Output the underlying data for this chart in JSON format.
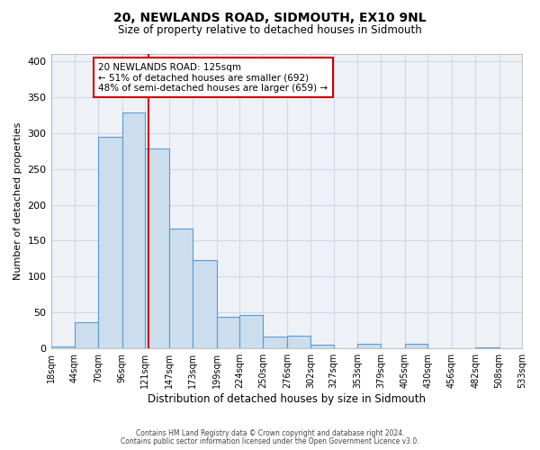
{
  "title1": "20, NEWLANDS ROAD, SIDMOUTH, EX10 9NL",
  "title2": "Size of property relative to detached houses in Sidmouth",
  "xlabel": "Distribution of detached houses by size in Sidmouth",
  "ylabel": "Number of detached properties",
  "bin_edges": [
    18,
    44,
    70,
    96,
    121,
    147,
    173,
    199,
    224,
    250,
    276,
    302,
    327,
    353,
    379,
    405,
    430,
    456,
    482,
    508,
    533
  ],
  "bin_labels": [
    "18sqm",
    "44sqm",
    "70sqm",
    "96sqm",
    "121sqm",
    "147sqm",
    "173sqm",
    "199sqm",
    "224sqm",
    "250sqm",
    "276sqm",
    "302sqm",
    "327sqm",
    "353sqm",
    "379sqm",
    "405sqm",
    "430sqm",
    "456sqm",
    "482sqm",
    "508sqm",
    "533sqm"
  ],
  "counts": [
    3,
    36,
    295,
    329,
    279,
    167,
    123,
    44,
    46,
    17,
    18,
    5,
    0,
    6,
    0,
    6,
    0,
    0,
    2,
    0
  ],
  "property_value": 125,
  "annotation_title": "20 NEWLANDS ROAD: 125sqm",
  "annotation_line1": "← 51% of detached houses are smaller (692)",
  "annotation_line2": "48% of semi-detached houses are larger (659) →",
  "bar_color": "#ccdded",
  "bar_edge_color": "#5b9bd5",
  "vline_color": "#cc0000",
  "annotation_box_edge": "#cc0000",
  "grid_color": "#d0d8e8",
  "background_color": "#eef2f7",
  "footer1": "Contains HM Land Registry data © Crown copyright and database right 2024.",
  "footer2": "Contains public sector information licensed under the Open Government Licence v3.0.",
  "ylim": [
    0,
    410
  ],
  "yticks": [
    0,
    50,
    100,
    150,
    200,
    250,
    300,
    350,
    400
  ]
}
